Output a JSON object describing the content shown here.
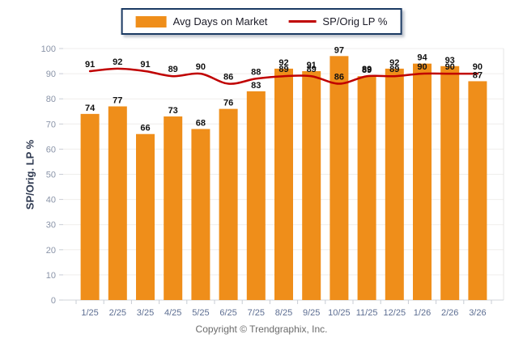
{
  "legend": {
    "items": [
      {
        "label": "Avg Days on Market",
        "swatch": "bar",
        "color": "#ef8e1a"
      },
      {
        "label": "SP/Orig LP %",
        "swatch": "line",
        "color": "#c00000"
      }
    ]
  },
  "y_axis": {
    "title": "SP/Orig. LP %",
    "ticks": [
      0,
      10,
      20,
      30,
      40,
      50,
      60,
      70,
      80,
      90,
      100
    ]
  },
  "footer": {
    "copyright": "Copyright © Trendgraphix, Inc."
  },
  "colors": {
    "bar": "#ef8e1a",
    "line": "#c00000",
    "gridline": "#efeeec",
    "axis_line": "#d0d4da",
    "tick_mark": "#c8ccd4",
    "y_tick_label": "#8a94a8",
    "x_tick_label": "#5d6e92",
    "value_label": "#111111"
  },
  "chart_data": {
    "type": "bar",
    "title": "",
    "xlabel": "",
    "ylabel": "SP/Orig. LP %",
    "ylim": [
      0,
      100
    ],
    "grid": true,
    "legend_position": "top",
    "categories": [
      "1/25",
      "2/25",
      "3/25",
      "4/25",
      "5/25",
      "6/25",
      "7/25",
      "8/25",
      "9/25",
      "10/25",
      "11/25",
      "12/25",
      "1/26",
      "2/26",
      "3/26"
    ],
    "series": [
      {
        "name": "Avg Days on Market",
        "type": "bar",
        "color": "#ef8e1a",
        "values": [
          74,
          77,
          66,
          73,
          68,
          76,
          83,
          92,
          91,
          97,
          89,
          92,
          94,
          93,
          87
        ]
      },
      {
        "name": "SP/Orig LP %",
        "type": "line",
        "color": "#c00000",
        "values": [
          91,
          92,
          91,
          89,
          90,
          86,
          88,
          89,
          89,
          86,
          89,
          89,
          90,
          90,
          90
        ]
      }
    ]
  }
}
